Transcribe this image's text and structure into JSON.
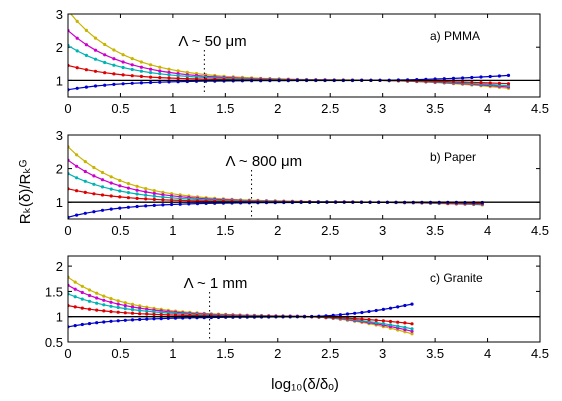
{
  "figure": {
    "xlabel": "log₁₀(δ/δₒ)",
    "ylabel": "Rₖ(δ)/Rₖᴳ"
  },
  "chart_data": [
    {
      "type": "line",
      "panel_label": "a) PMMA",
      "annotation": "Λ ~ 50 μm",
      "annotation_x": 1.3,
      "xlim": [
        0,
        4.5
      ],
      "ylim": [
        0.5,
        3
      ],
      "xticks": [
        0,
        0.5,
        1,
        1.5,
        2,
        2.5,
        3,
        3.5,
        4,
        4.5
      ],
      "yticks": [
        1,
        2,
        3
      ],
      "reference_line_y": 1,
      "series": [
        {
          "color": "#c8b400",
          "start": 3.1,
          "end": 0.76,
          "x_end": 4.2
        },
        {
          "color": "#cc00cc",
          "start": 2.5,
          "end": 0.8,
          "x_end": 4.2
        },
        {
          "color": "#00b3b3",
          "start": 2.05,
          "end": 0.84,
          "x_end": 4.2
        },
        {
          "color": "#dd0000",
          "start": 1.45,
          "end": 0.9,
          "x_end": 4.2
        },
        {
          "color": "#0000cc",
          "start": 0.72,
          "end": 1.15,
          "x_end": 4.2
        }
      ]
    },
    {
      "type": "line",
      "panel_label": "b) Paper",
      "annotation": "Λ ~ 800 μm",
      "annotation_x": 1.75,
      "xlim": [
        0,
        4.5
      ],
      "ylim": [
        0.5,
        3
      ],
      "xticks": [
        0,
        0.5,
        1,
        1.5,
        2,
        2.5,
        3,
        3.5,
        4,
        4.5
      ],
      "yticks": [
        1,
        2,
        3
      ],
      "reference_line_y": 1,
      "series": [
        {
          "color": "#c8b400",
          "start": 2.65,
          "end": 0.92,
          "x_end": 3.95
        },
        {
          "color": "#cc00cc",
          "start": 2.25,
          "end": 0.93,
          "x_end": 3.95
        },
        {
          "color": "#00b3b3",
          "start": 1.85,
          "end": 0.94,
          "x_end": 3.95
        },
        {
          "color": "#dd0000",
          "start": 1.4,
          "end": 0.96,
          "x_end": 3.95
        },
        {
          "color": "#0000cc",
          "start": 0.55,
          "end": 0.99,
          "x_end": 3.95
        }
      ]
    },
    {
      "type": "line",
      "panel_label": "c) Granite",
      "annotation": "Λ ~ 1 mm",
      "annotation_x": 1.35,
      "xlim": [
        0,
        4.5
      ],
      "ylim": [
        0.5,
        2.2
      ],
      "xticks": [
        0,
        0.5,
        1,
        1.5,
        2,
        2.5,
        3,
        3.5,
        4,
        4.5
      ],
      "yticks": [
        0.5,
        1,
        1.5,
        2
      ],
      "reference_line_y": 1,
      "series": [
        {
          "color": "#c8b400",
          "start": 1.78,
          "end": 0.66,
          "x_end": 3.28
        },
        {
          "color": "#cc00cc",
          "start": 1.62,
          "end": 0.71,
          "x_end": 3.28
        },
        {
          "color": "#00b3b3",
          "start": 1.45,
          "end": 0.76,
          "x_end": 3.28
        },
        {
          "color": "#dd0000",
          "start": 1.22,
          "end": 0.86,
          "x_end": 3.28
        },
        {
          "color": "#0000cc",
          "start": 0.8,
          "end": 1.25,
          "x_end": 3.28
        }
      ]
    }
  ]
}
